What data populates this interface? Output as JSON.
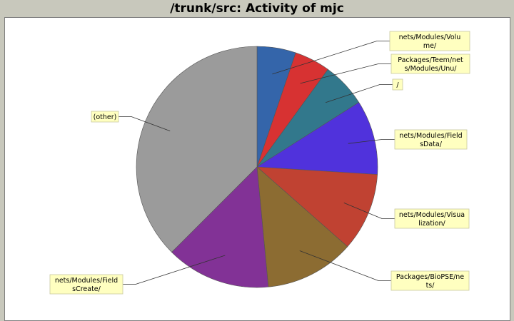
{
  "chart_data": {
    "type": "pie",
    "title": "/trunk/src: Activity of mjc",
    "start_angle_deg": 0,
    "direction": "clockwise",
    "slices": [
      {
        "label": [
          "nets/Modules/Volu",
          "me/"
        ],
        "value": 5.2,
        "color": "#3465aa"
      },
      {
        "label": [
          "Packages/Teem/net",
          "s/Modules/Unu/"
        ],
        "value": 4.8,
        "color": "#d73232"
      },
      {
        "label": [
          "/"
        ],
        "value": 6.0,
        "color": "#32788c"
      },
      {
        "label": [
          "nets/Modules/Field",
          "sData/"
        ],
        "value": 10.0,
        "color": "#5032dc"
      },
      {
        "label": [
          "nets/Modules/Visua",
          "lization/"
        ],
        "value": 10.5,
        "color": "#c04232"
      },
      {
        "label": [
          "Packages/BioPSE/ne",
          "ts/"
        ],
        "value": 12.0,
        "color": "#8c6c32"
      },
      {
        "label": [
          "nets/Modules/Field",
          "sCreate/"
        ],
        "value": 14.0,
        "color": "#823296"
      },
      {
        "label": [
          "(other)"
        ],
        "value": 37.5,
        "color": "#9b9b9b"
      }
    ]
  }
}
